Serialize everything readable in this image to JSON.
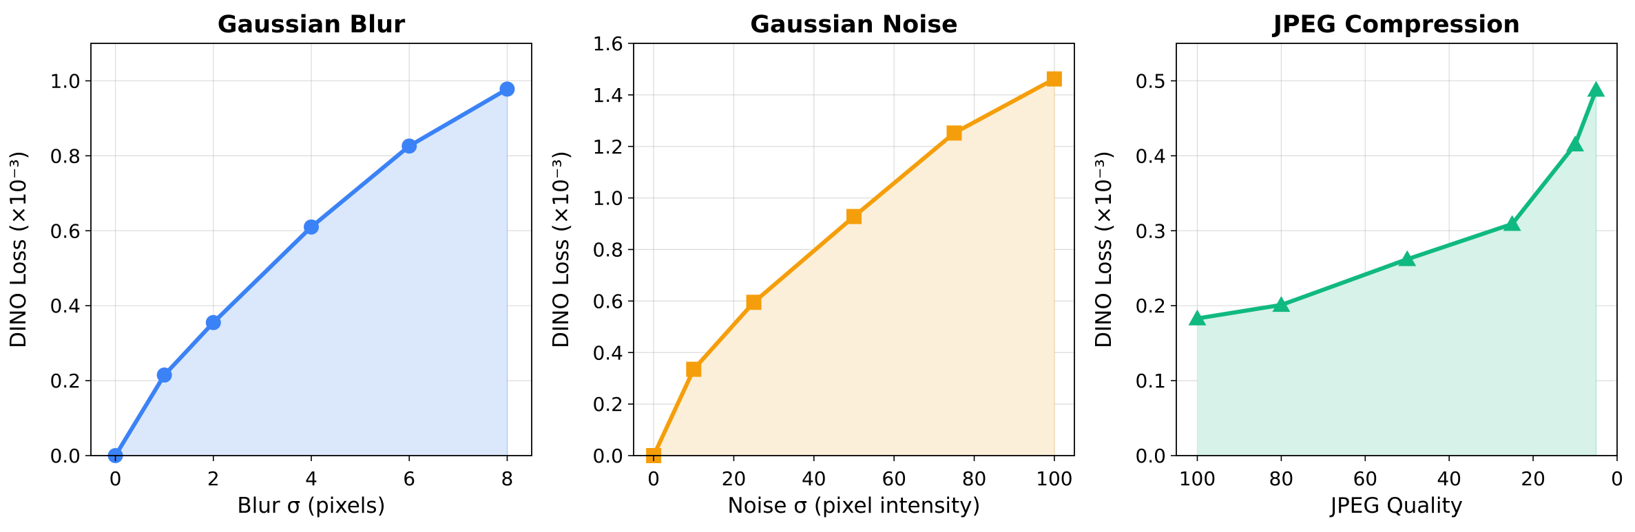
{
  "chart_data": [
    {
      "type": "line",
      "title": "Gaussian Blur",
      "xlabel": "Blur σ (pixels)",
      "ylabel": "DINO Loss (×10⁻³)",
      "xlim": [
        -0.5,
        8.5
      ],
      "ylim": [
        0,
        1.1
      ],
      "xticks": [
        0,
        2,
        4,
        6,
        8
      ],
      "xtick_labels": [
        "0",
        "2",
        "4",
        "6",
        "8"
      ],
      "yticks": [
        0.0,
        0.2,
        0.4,
        0.6,
        0.8,
        1.0
      ],
      "ytick_labels": [
        "0.0",
        "0.2",
        "0.4",
        "0.6",
        "0.8",
        "1.0"
      ],
      "grid": true,
      "color": "#3b82f6",
      "fill_color": "#dbe8fb",
      "marker": "circle",
      "series": [
        {
          "x": [
            0,
            1,
            2,
            4,
            6,
            8
          ],
          "y": [
            0.0,
            0.215,
            0.355,
            0.61,
            0.826,
            0.978
          ]
        }
      ]
    },
    {
      "type": "line",
      "title": "Gaussian Noise",
      "xlabel": "Noise σ (pixel intensity)",
      "ylabel": "DINO Loss (×10⁻³)",
      "xlim": [
        -5,
        105
      ],
      "ylim": [
        0,
        1.6
      ],
      "xticks": [
        0,
        20,
        40,
        60,
        80,
        100
      ],
      "xtick_labels": [
        "0",
        "20",
        "40",
        "60",
        "80",
        "100"
      ],
      "yticks": [
        0.0,
        0.2,
        0.4,
        0.6,
        0.8,
        1.0,
        1.2,
        1.4,
        1.6
      ],
      "ytick_labels": [
        "0.0",
        "0.2",
        "0.4",
        "0.6",
        "0.8",
        "1.0",
        "1.2",
        "1.4",
        "1.6"
      ],
      "grid": true,
      "color": "#f59e0b",
      "fill_color": "#fcefd9",
      "marker": "square",
      "series": [
        {
          "x": [
            0,
            10,
            25,
            50,
            75,
            100
          ],
          "y": [
            0.0,
            0.335,
            0.595,
            0.928,
            1.252,
            1.462
          ]
        }
      ]
    },
    {
      "type": "line",
      "title": "JPEG Compression",
      "xlabel": "JPEG Quality",
      "ylabel": "DINO Loss (×10⁻³)",
      "xlim": [
        105,
        0
      ],
      "ylim": [
        0,
        0.55
      ],
      "x_inverted": true,
      "xticks": [
        100,
        80,
        60,
        40,
        20,
        0
      ],
      "xtick_labels": [
        "100",
        "80",
        "60",
        "40",
        "20",
        "0"
      ],
      "yticks": [
        0.0,
        0.1,
        0.2,
        0.3,
        0.4,
        0.5
      ],
      "ytick_labels": [
        "0.0",
        "0.1",
        "0.2",
        "0.3",
        "0.4",
        "0.5"
      ],
      "grid": true,
      "color": "#10b981",
      "fill_color": "#d7f2e8",
      "marker": "triangle",
      "series": [
        {
          "x": [
            100,
            80,
            50,
            25,
            10,
            5
          ],
          "y": [
            0.183,
            0.201,
            0.262,
            0.309,
            0.415,
            0.488
          ]
        }
      ]
    }
  ]
}
